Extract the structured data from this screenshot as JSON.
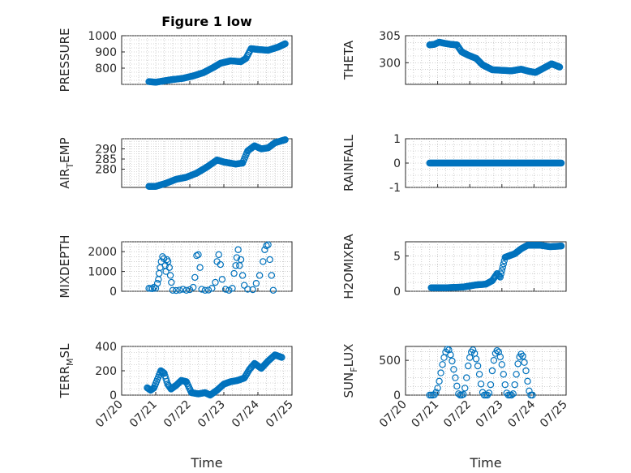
{
  "figure": {
    "title": "Figure 1 low"
  },
  "colors": {
    "marker": "#0072BD",
    "axes": "#262626",
    "grid": "#b0b0b0"
  },
  "chart_data": [
    {
      "id": "pressure",
      "type": "scatter",
      "title": "Figure 1 low",
      "ylabel": {
        "main": "PRESSURE",
        "sub": "",
        "tail": ""
      },
      "xlabel": "",
      "xlim": [
        "07/20",
        "07/25"
      ],
      "ylim": [
        700,
        1000
      ],
      "yticks": [
        800,
        900,
        1000
      ],
      "ytick_labels": [
        "800",
        "900",
        "1000"
      ],
      "grid": true,
      "anchors": [
        [
          0.8,
          717
        ],
        [
          1.0,
          713
        ],
        [
          1.2,
          720
        ],
        [
          1.5,
          730
        ],
        [
          1.8,
          737
        ],
        [
          2.1,
          752
        ],
        [
          2.4,
          772
        ],
        [
          2.7,
          805
        ],
        [
          2.9,
          830
        ],
        [
          3.2,
          845
        ],
        [
          3.5,
          840
        ],
        [
          3.65,
          860
        ],
        [
          3.8,
          920
        ],
        [
          4.0,
          915
        ],
        [
          4.3,
          910
        ],
        [
          4.6,
          930
        ],
        [
          4.8,
          950
        ]
      ]
    },
    {
      "id": "theta",
      "type": "scatter",
      "ylabel": {
        "main": "THETA",
        "sub": "",
        "tail": ""
      },
      "xlabel": "",
      "xlim": [
        "07/20",
        "07/25"
      ],
      "ylim": [
        296,
        305
      ],
      "yticks": [
        300,
        305
      ],
      "ytick_labels": [
        "300",
        "305"
      ],
      "grid": true,
      "anchors": [
        [
          0.75,
          303.3
        ],
        [
          0.9,
          303.4
        ],
        [
          1.05,
          303.8
        ],
        [
          1.2,
          303.6
        ],
        [
          1.4,
          303.4
        ],
        [
          1.6,
          303.3
        ],
        [
          1.75,
          302.0
        ],
        [
          1.95,
          301.4
        ],
        [
          2.2,
          300.8
        ],
        [
          2.4,
          299.6
        ],
        [
          2.7,
          298.7
        ],
        [
          3.0,
          298.6
        ],
        [
          3.3,
          298.5
        ],
        [
          3.6,
          298.8
        ],
        [
          3.85,
          298.4
        ],
        [
          4.05,
          298.2
        ],
        [
          4.3,
          299.0
        ],
        [
          4.55,
          299.8
        ],
        [
          4.8,
          299.2
        ]
      ]
    },
    {
      "id": "air_temp",
      "type": "scatter",
      "ylabel": {
        "main": "AIR",
        "sub": "T",
        "tail": "EMP"
      },
      "xlabel": "",
      "xlim": [
        "07/20",
        "07/25"
      ],
      "ylim": [
        271,
        295
      ],
      "yticks": [
        280,
        285,
        290
      ],
      "ytick_labels": [
        "280",
        "285",
        "290"
      ],
      "grid": true,
      "anchors": [
        [
          0.8,
          271.5
        ],
        [
          1.0,
          271.5
        ],
        [
          1.3,
          273.0
        ],
        [
          1.6,
          275.0
        ],
        [
          1.9,
          276.0
        ],
        [
          2.2,
          278.0
        ],
        [
          2.5,
          281.0
        ],
        [
          2.8,
          284.5
        ],
        [
          3.0,
          283.5
        ],
        [
          3.35,
          282.5
        ],
        [
          3.55,
          283.0
        ],
        [
          3.7,
          289.0
        ],
        [
          3.9,
          291.5
        ],
        [
          4.1,
          290.0
        ],
        [
          4.3,
          290.5
        ],
        [
          4.5,
          293.0
        ],
        [
          4.8,
          294.5
        ]
      ]
    },
    {
      "id": "rainfall",
      "type": "scatter",
      "ylabel": {
        "main": "RAINFALL",
        "sub": "",
        "tail": ""
      },
      "xlabel": "",
      "xlim": [
        "07/20",
        "07/25"
      ],
      "ylim": [
        -1,
        1
      ],
      "yticks": [
        -1,
        0,
        1
      ],
      "ytick_labels": [
        "-1",
        "0",
        "1"
      ],
      "grid": true,
      "anchors": [
        [
          0.75,
          0
        ],
        [
          4.85,
          0
        ]
      ]
    },
    {
      "id": "mixdepth",
      "type": "scatter",
      "ylabel": {
        "main": "MIXDEPTH",
        "sub": "",
        "tail": ""
      },
      "xlabel": "",
      "xlim": [
        "07/20",
        "07/25"
      ],
      "ylim": [
        0,
        2500
      ],
      "yticks": [
        0,
        1000,
        2000
      ],
      "ytick_labels": [
        "0",
        "1000",
        "2000"
      ],
      "grid": true,
      "points": [
        [
          0.8,
          150
        ],
        [
          0.85,
          140
        ],
        [
          0.9,
          130
        ],
        [
          0.95,
          200
        ],
        [
          1.0,
          150
        ],
        [
          1.05,
          400
        ],
        [
          1.08,
          600
        ],
        [
          1.1,
          900
        ],
        [
          1.13,
          1200
        ],
        [
          1.16,
          1500
        ],
        [
          1.2,
          1750
        ],
        [
          1.24,
          1650
        ],
        [
          1.28,
          1300
        ],
        [
          1.3,
          1000
        ],
        [
          1.33,
          1600
        ],
        [
          1.36,
          1500
        ],
        [
          1.4,
          1200
        ],
        [
          1.43,
          800
        ],
        [
          1.46,
          450
        ],
        [
          1.5,
          50
        ],
        [
          1.6,
          40
        ],
        [
          1.7,
          60
        ],
        [
          1.8,
          100
        ],
        [
          1.9,
          50
        ],
        [
          2.0,
          80
        ],
        [
          2.1,
          200
        ],
        [
          2.15,
          700
        ],
        [
          2.2,
          1800
        ],
        [
          2.25,
          1850
        ],
        [
          2.3,
          1200
        ],
        [
          2.35,
          100
        ],
        [
          2.45,
          50
        ],
        [
          2.55,
          60
        ],
        [
          2.65,
          150
        ],
        [
          2.75,
          450
        ],
        [
          2.8,
          1500
        ],
        [
          2.85,
          1850
        ],
        [
          2.9,
          1350
        ],
        [
          2.95,
          600
        ],
        [
          3.05,
          100
        ],
        [
          3.15,
          50
        ],
        [
          3.25,
          150
        ],
        [
          3.3,
          900
        ],
        [
          3.35,
          1300
        ],
        [
          3.38,
          1700
        ],
        [
          3.42,
          2100
        ],
        [
          3.46,
          1300
        ],
        [
          3.5,
          1600
        ],
        [
          3.55,
          800
        ],
        [
          3.6,
          300
        ],
        [
          3.7,
          100
        ],
        [
          3.85,
          80
        ],
        [
          3.95,
          400
        ],
        [
          4.05,
          800
        ],
        [
          4.15,
          1500
        ],
        [
          4.2,
          2100
        ],
        [
          4.25,
          2300
        ],
        [
          4.3,
          2350
        ],
        [
          4.35,
          1600
        ],
        [
          4.4,
          800
        ],
        [
          4.45,
          50
        ]
      ]
    },
    {
      "id": "h2omixra",
      "type": "scatter",
      "ylabel": {
        "main": "H2OMIXRA",
        "sub": "",
        "tail": ""
      },
      "xlabel": "",
      "xlim": [
        "07/20",
        "07/25"
      ],
      "ylim": [
        0,
        7
      ],
      "yticks": [
        0,
        5
      ],
      "ytick_labels": [
        "0",
        "5"
      ],
      "grid": true,
      "anchors": [
        [
          0.8,
          0.5
        ],
        [
          1.3,
          0.5
        ],
        [
          1.8,
          0.6
        ],
        [
          2.2,
          0.9
        ],
        [
          2.5,
          1.0
        ],
        [
          2.7,
          1.5
        ],
        [
          2.85,
          2.5
        ],
        [
          2.95,
          2.0
        ],
        [
          3.1,
          4.8
        ],
        [
          3.4,
          5.3
        ],
        [
          3.6,
          6.0
        ],
        [
          3.8,
          6.5
        ],
        [
          4.2,
          6.5
        ],
        [
          4.5,
          6.3
        ],
        [
          4.85,
          6.4
        ]
      ]
    },
    {
      "id": "terr_msl",
      "type": "scatter",
      "ylabel": {
        "main": "TERR",
        "sub": "M",
        "tail": "SL"
      },
      "xlabel": "Time",
      "xlim": [
        "07/20",
        "07/25"
      ],
      "ylim": [
        0,
        400
      ],
      "yticks": [
        0,
        200,
        400
      ],
      "ytick_labels": [
        "0",
        "200",
        "400"
      ],
      "xticks": [
        "07/20",
        "07/21",
        "07/22",
        "07/23",
        "07/24",
        "07/25"
      ],
      "grid": true,
      "anchors": [
        [
          0.75,
          60
        ],
        [
          0.85,
          40
        ],
        [
          0.95,
          60
        ],
        [
          1.05,
          130
        ],
        [
          1.15,
          200
        ],
        [
          1.25,
          180
        ],
        [
          1.35,
          90
        ],
        [
          1.45,
          50
        ],
        [
          1.6,
          80
        ],
        [
          1.75,
          120
        ],
        [
          1.9,
          110
        ],
        [
          2.05,
          20
        ],
        [
          2.25,
          10
        ],
        [
          2.45,
          20
        ],
        [
          2.6,
          0
        ],
        [
          2.8,
          40
        ],
        [
          3.0,
          90
        ],
        [
          3.2,
          110
        ],
        [
          3.4,
          120
        ],
        [
          3.6,
          140
        ],
        [
          3.75,
          210
        ],
        [
          3.9,
          260
        ],
        [
          4.1,
          220
        ],
        [
          4.3,
          280
        ],
        [
          4.5,
          330
        ],
        [
          4.7,
          310
        ]
      ]
    },
    {
      "id": "sun_flux",
      "type": "scatter",
      "ylabel": {
        "main": "SUN",
        "sub": "F",
        "tail": "LUX"
      },
      "xlabel": "Time",
      "xlim": [
        "07/20",
        "07/25"
      ],
      "ylim": [
        0,
        700
      ],
      "yticks": [
        0,
        500
      ],
      "ytick_labels": [
        "0",
        "500"
      ],
      "xticks": [
        "07/20",
        "07/21",
        "07/22",
        "07/23",
        "07/24",
        "07/25"
      ],
      "grid": true,
      "points": [
        [
          0.75,
          0
        ],
        [
          0.8,
          0
        ],
        [
          0.85,
          0
        ],
        [
          0.9,
          5
        ],
        [
          0.95,
          40
        ],
        [
          1.0,
          100
        ],
        [
          1.05,
          200
        ],
        [
          1.1,
          320
        ],
        [
          1.15,
          440
        ],
        [
          1.2,
          540
        ],
        [
          1.25,
          620
        ],
        [
          1.3,
          660
        ],
        [
          1.35,
          650
        ],
        [
          1.4,
          580
        ],
        [
          1.45,
          490
        ],
        [
          1.5,
          370
        ],
        [
          1.55,
          250
        ],
        [
          1.6,
          130
        ],
        [
          1.65,
          20
        ],
        [
          1.7,
          0
        ],
        [
          1.75,
          0
        ],
        [
          1.8,
          10
        ],
        [
          1.85,
          100
        ],
        [
          1.9,
          250
        ],
        [
          1.95,
          420
        ],
        [
          2.0,
          540
        ],
        [
          2.05,
          620
        ],
        [
          2.1,
          650
        ],
        [
          2.15,
          600
        ],
        [
          2.2,
          520
        ],
        [
          2.25,
          420
        ],
        [
          2.3,
          300
        ],
        [
          2.35,
          160
        ],
        [
          2.4,
          40
        ],
        [
          2.45,
          0
        ],
        [
          2.5,
          0
        ],
        [
          2.55,
          0
        ],
        [
          2.6,
          30
        ],
        [
          2.65,
          150
        ],
        [
          2.7,
          350
        ],
        [
          2.75,
          500
        ],
        [
          2.8,
          600
        ],
        [
          2.85,
          640
        ],
        [
          2.9,
          620
        ],
        [
          2.95,
          550
        ],
        [
          3.0,
          440
        ],
        [
          3.05,
          300
        ],
        [
          3.1,
          150
        ],
        [
          3.15,
          30
        ],
        [
          3.2,
          0
        ],
        [
          3.25,
          0
        ],
        [
          3.3,
          0
        ],
        [
          3.35,
          20
        ],
        [
          3.4,
          150
        ],
        [
          3.45,
          300
        ],
        [
          3.5,
          450
        ],
        [
          3.55,
          550
        ],
        [
          3.6,
          590
        ],
        [
          3.65,
          560
        ],
        [
          3.7,
          470
        ],
        [
          3.75,
          350
        ],
        [
          3.8,
          200
        ],
        [
          3.85,
          60
        ],
        [
          3.9,
          0
        ],
        [
          3.95,
          0
        ]
      ]
    }
  ]
}
